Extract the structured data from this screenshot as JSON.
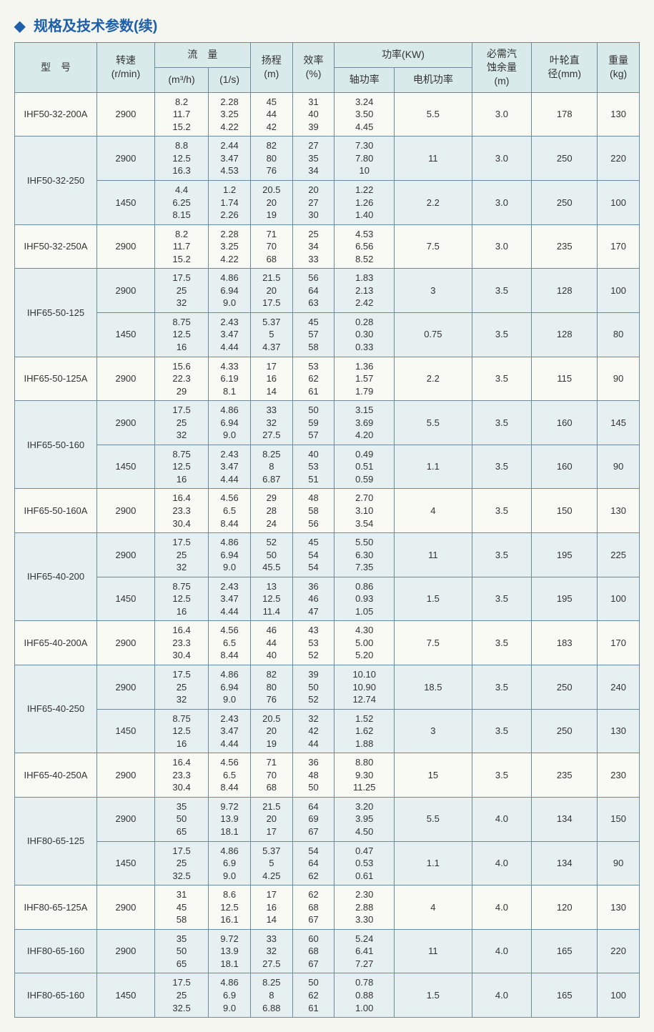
{
  "title": "规格及技术参数(续)",
  "headers": {
    "model": "型　号",
    "speed": "转速\n(r/min)",
    "flow": "流　量",
    "flow_m3h": "(m³/h)",
    "flow_ls": "(1/s)",
    "head": "扬程\n(m)",
    "eff": "效率\n(%)",
    "power": "功率(KW)",
    "shaft_power": "轴功率",
    "motor_power": "电机功率",
    "npsh": "必需汽\n蚀余量\n(m)",
    "impeller": "叶轮直\n径(mm)",
    "weight": "重量\n(kg)"
  },
  "styles": {
    "header_bg": "#d9eaea",
    "alt_bg": "#e6f0f0",
    "border_color": "#6b8a9e",
    "title_color": "#1e5faa"
  },
  "rows": [
    {
      "model": "IHF50-32-200A",
      "subrows": [
        {
          "speed": "2900",
          "m3h": "8.2\n11.7\n15.2",
          "ls": "2.28\n3.25\n4.22",
          "head": "45\n44\n42",
          "eff": "31\n40\n39",
          "sp": "3.24\n3.50\n4.45",
          "mp": "5.5",
          "npsh": "3.0",
          "imp": "178",
          "wt": "130"
        }
      ],
      "alt": false
    },
    {
      "model": "IHF50-32-250",
      "subrows": [
        {
          "speed": "2900",
          "m3h": "8.8\n12.5\n16.3",
          "ls": "2.44\n3.47\n4.53",
          "head": "82\n80\n76",
          "eff": "27\n35\n34",
          "sp": "7.30\n7.80\n10",
          "mp": "11",
          "npsh": "3.0",
          "imp": "250",
          "wt": "220"
        },
        {
          "speed": "1450",
          "m3h": "4.4\n6.25\n8.15",
          "ls": "1.2\n1.74\n2.26",
          "head": "20.5\n20\n19",
          "eff": "20\n27\n30",
          "sp": "1.22\n1.26\n1.40",
          "mp": "2.2",
          "npsh": "3.0",
          "imp": "250",
          "wt": "100"
        }
      ],
      "alt": true
    },
    {
      "model": "IHF50-32-250A",
      "subrows": [
        {
          "speed": "2900",
          "m3h": "8.2\n11.7\n15.2",
          "ls": "2.28\n3.25\n4.22",
          "head": "71\n70\n68",
          "eff": "25\n34\n33",
          "sp": "4.53\n6.56\n8.52",
          "mp": "7.5",
          "npsh": "3.0",
          "imp": "235",
          "wt": "170"
        }
      ],
      "alt": false
    },
    {
      "model": "IHF65-50-125",
      "subrows": [
        {
          "speed": "2900",
          "m3h": "17.5\n25\n32",
          "ls": "4.86\n6.94\n9.0",
          "head": "21.5\n20\n17.5",
          "eff": "56\n64\n63",
          "sp": "1.83\n2.13\n2.42",
          "mp": "3",
          "npsh": "3.5",
          "imp": "128",
          "wt": "100"
        },
        {
          "speed": "1450",
          "m3h": "8.75\n12.5\n16",
          "ls": "2.43\n3.47\n4.44",
          "head": "5.37\n5\n4.37",
          "eff": "45\n57\n58",
          "sp": "0.28\n0.30\n0.33",
          "mp": "0.75",
          "npsh": "3.5",
          "imp": "128",
          "wt": "80"
        }
      ],
      "alt": true
    },
    {
      "model": "IHF65-50-125A",
      "subrows": [
        {
          "speed": "2900",
          "m3h": "15.6\n22.3\n29",
          "ls": "4.33\n6.19\n8.1",
          "head": "17\n16\n14",
          "eff": "53\n62\n61",
          "sp": "1.36\n1.57\n1.79",
          "mp": "2.2",
          "npsh": "3.5",
          "imp": "115",
          "wt": "90"
        }
      ],
      "alt": false
    },
    {
      "model": "IHF65-50-160",
      "subrows": [
        {
          "speed": "2900",
          "m3h": "17.5\n25\n32",
          "ls": "4.86\n6.94\n9.0",
          "head": "33\n32\n27.5",
          "eff": "50\n59\n57",
          "sp": "3.15\n3.69\n4.20",
          "mp": "5.5",
          "npsh": "3.5",
          "imp": "160",
          "wt": "145"
        },
        {
          "speed": "1450",
          "m3h": "8.75\n12.5\n16",
          "ls": "2.43\n3.47\n4.44",
          "head": "8.25\n8\n6.87",
          "eff": "40\n53\n51",
          "sp": "0.49\n0.51\n0.59",
          "mp": "1.1",
          "npsh": "3.5",
          "imp": "160",
          "wt": "90"
        }
      ],
      "alt": true
    },
    {
      "model": "IHF65-50-160A",
      "subrows": [
        {
          "speed": "2900",
          "m3h": "16.4\n23.3\n30.4",
          "ls": "4.56\n6.5\n8.44",
          "head": "29\n28\n24",
          "eff": "48\n58\n56",
          "sp": "2.70\n3.10\n3.54",
          "mp": "4",
          "npsh": "3.5",
          "imp": "150",
          "wt": "130"
        }
      ],
      "alt": false
    },
    {
      "model": "IHF65-40-200",
      "subrows": [
        {
          "speed": "2900",
          "m3h": "17.5\n25\n32",
          "ls": "4.86\n6.94\n9.0",
          "head": "52\n50\n45.5",
          "eff": "45\n54\n54",
          "sp": "5.50\n6.30\n7.35",
          "mp": "11",
          "npsh": "3.5",
          "imp": "195",
          "wt": "225"
        },
        {
          "speed": "1450",
          "m3h": "8.75\n12.5\n16",
          "ls": "2.43\n3.47\n4.44",
          "head": "13\n12.5\n11.4",
          "eff": "36\n46\n47",
          "sp": "0.86\n0.93\n1.05",
          "mp": "1.5",
          "npsh": "3.5",
          "imp": "195",
          "wt": "100"
        }
      ],
      "alt": true
    },
    {
      "model": "IHF65-40-200A",
      "subrows": [
        {
          "speed": "2900",
          "m3h": "16.4\n23.3\n30.4",
          "ls": "4.56\n6.5\n8.44",
          "head": "46\n44\n40",
          "eff": "43\n53\n52",
          "sp": "4.30\n5.00\n5.20",
          "mp": "7.5",
          "npsh": "3.5",
          "imp": "183",
          "wt": "170"
        }
      ],
      "alt": false
    },
    {
      "model": "IHF65-40-250",
      "subrows": [
        {
          "speed": "2900",
          "m3h": "17.5\n25\n32",
          "ls": "4.86\n6.94\n9.0",
          "head": "82\n80\n76",
          "eff": "39\n50\n52",
          "sp": "10.10\n10.90\n12.74",
          "mp": "18.5",
          "npsh": "3.5",
          "imp": "250",
          "wt": "240"
        },
        {
          "speed": "1450",
          "m3h": "8.75\n12.5\n16",
          "ls": "2.43\n3.47\n4.44",
          "head": "20.5\n20\n19",
          "eff": "32\n42\n44",
          "sp": "1.52\n1.62\n1.88",
          "mp": "3",
          "npsh": "3.5",
          "imp": "250",
          "wt": "130"
        }
      ],
      "alt": true
    },
    {
      "model": "IHF65-40-250A",
      "subrows": [
        {
          "speed": "2900",
          "m3h": "16.4\n23.3\n30.4",
          "ls": "4.56\n6.5\n8.44",
          "head": "71\n70\n68",
          "eff": "36\n48\n50",
          "sp": "8.80\n9.30\n11.25",
          "mp": "15",
          "npsh": "3.5",
          "imp": "235",
          "wt": "230"
        }
      ],
      "alt": false
    },
    {
      "model": "IHF80-65-125",
      "subrows": [
        {
          "speed": "2900",
          "m3h": "35\n50\n65",
          "ls": "9.72\n13.9\n18.1",
          "head": "21.5\n20\n17",
          "eff": "64\n69\n67",
          "sp": "3.20\n3.95\n4.50",
          "mp": "5.5",
          "npsh": "4.0",
          "imp": "134",
          "wt": "150"
        },
        {
          "speed": "1450",
          "m3h": "17.5\n25\n32.5",
          "ls": "4.86\n6.9\n9.0",
          "head": "5.37\n5\n4.25",
          "eff": "54\n64\n62",
          "sp": "0.47\n0.53\n0.61",
          "mp": "1.1",
          "npsh": "4.0",
          "imp": "134",
          "wt": "90"
        }
      ],
      "alt": true
    },
    {
      "model": "IHF80-65-125A",
      "subrows": [
        {
          "speed": "2900",
          "m3h": "31\n45\n58",
          "ls": "8.6\n12.5\n16.1",
          "head": "17\n16\n14",
          "eff": "62\n68\n67",
          "sp": "2.30\n2.88\n3.30",
          "mp": "4",
          "npsh": "4.0",
          "imp": "120",
          "wt": "130"
        }
      ],
      "alt": false
    },
    {
      "model": "IHF80-65-160",
      "subrows": [
        {
          "speed": "2900",
          "m3h": "35\n50\n65",
          "ls": "9.72\n13.9\n18.1",
          "head": "33\n32\n27.5",
          "eff": "60\n68\n67",
          "sp": "5.24\n6.41\n7.27",
          "mp": "11",
          "npsh": "4.0",
          "imp": "165",
          "wt": "220"
        }
      ],
      "alt": true
    },
    {
      "model": "IHF80-65-160",
      "subrows": [
        {
          "speed": "1450",
          "m3h": "17.5\n25\n32.5",
          "ls": "4.86\n6.9\n9.0",
          "head": "8.25\n8\n6.88",
          "eff": "50\n62\n61",
          "sp": "0.78\n0.88\n1.00",
          "mp": "1.5",
          "npsh": "4.0",
          "imp": "165",
          "wt": "100"
        }
      ],
      "alt": true
    }
  ]
}
